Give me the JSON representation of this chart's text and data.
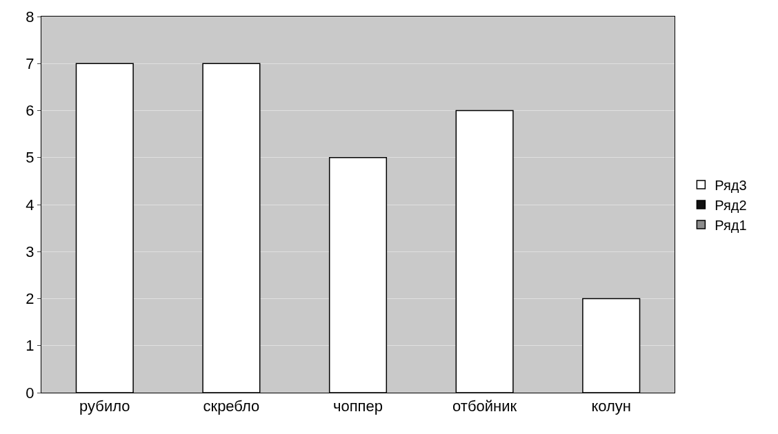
{
  "chart_data": {
    "type": "bar",
    "categories": [
      "рубило",
      "скребло",
      "чоппер",
      "отбойник",
      "колун"
    ],
    "series": [
      {
        "name": "Ряд3",
        "color": "#ffffff",
        "values": [
          7,
          7,
          5,
          6,
          2
        ]
      },
      {
        "name": "Ряд2",
        "color": "#111111",
        "values": [
          null,
          null,
          null,
          null,
          null
        ]
      },
      {
        "name": "Ряд1",
        "color": "#8c8c8c",
        "values": [
          null,
          null,
          null,
          null,
          null
        ]
      }
    ],
    "ylim": [
      0,
      8
    ],
    "yticks": [
      0,
      1,
      2,
      3,
      4,
      5,
      6,
      7,
      8
    ],
    "grid": "y",
    "legend": "right"
  }
}
